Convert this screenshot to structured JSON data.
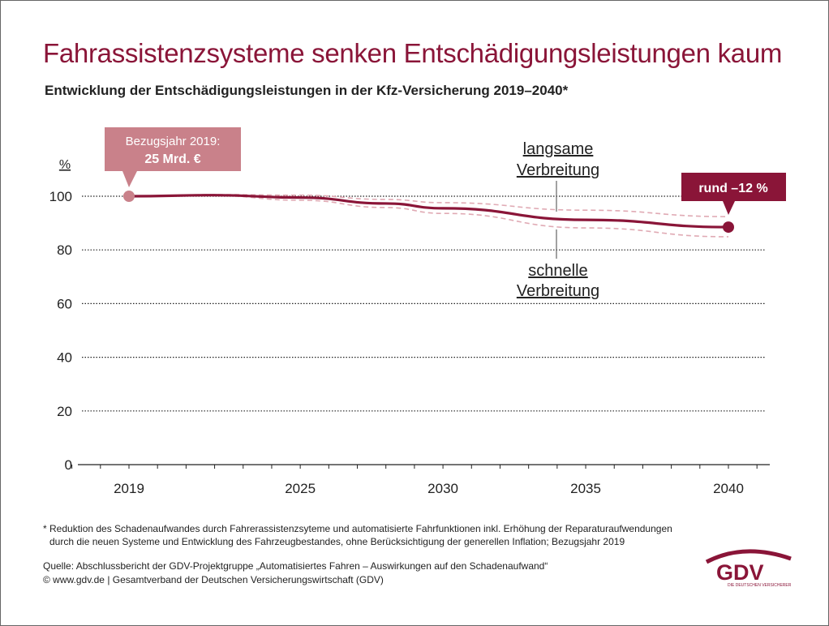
{
  "title": "Fahrassistenzsysteme senken Entschädigungsleistungen kaum",
  "subtitle": "Entwicklung der Entschädigungsleistungen in der Kfz-Versicherung 2019–2040*",
  "chart_data": {
    "type": "line",
    "ylabel": "%",
    "ylim": [
      0,
      100
    ],
    "yticks": [
      0,
      20,
      40,
      60,
      80,
      100
    ],
    "xticks": [
      2019,
      2025,
      2030,
      2035,
      2040
    ],
    "grid": "horizontal dotted",
    "series": [
      {
        "name": "main",
        "color": "#8a1538",
        "x": [
          2019,
          2022,
          2025,
          2028,
          2030,
          2035,
          2040
        ],
        "y": [
          100,
          100.4,
          99.5,
          97.3,
          95.5,
          91.2,
          88.5
        ]
      },
      {
        "name": "langsame Verbreitung",
        "color": "#e0aab4",
        "dashed": true,
        "x": [
          2019,
          2022,
          2025,
          2028,
          2030,
          2035,
          2040
        ],
        "y": [
          100,
          100.6,
          100.4,
          98.8,
          97.6,
          94.8,
          92.4
        ]
      },
      {
        "name": "schnelle Verbreitung",
        "color": "#e0aab4",
        "dashed": true,
        "x": [
          2019,
          2022,
          2025,
          2028,
          2030,
          2035,
          2040
        ],
        "y": [
          100,
          100.2,
          98.5,
          95.8,
          93.6,
          88.2,
          84.9
        ]
      }
    ],
    "annotations": {
      "start_line1": "Bezugsjahr 2019:",
      "start_line2": "25 Mrd. €",
      "end": "rund –12 %",
      "slow_line1": "langsame",
      "slow_line2": "Verbreitung",
      "fast_line1": "schnelle",
      "fast_line2": "Verbreitung"
    }
  },
  "colors": {
    "accent": "#8a1538",
    "start_box": "#c9818a"
  },
  "footnote_line1": "* Reduktion des Schadenaufwandes durch Fahrerassistenzsyteme und automatisierte Fahrfunktionen inkl.  Erhöhung der Reparaturaufwendungen",
  "footnote_line2": "durch die neuen Systeme und Entwicklung des Fahrzeugbestandes, ohne Berücksichtigung der generellen Inflation; Bezugsjahr 2019",
  "source": "Quelle: Abschlussbericht der GDV-Projektgruppe „Automatisiertes Fahren – Auswirkungen auf den Schadenaufwand“",
  "copyright": "© www.gdv.de | Gesamtverband der Deutschen Versicherungswirtschaft (GDV)",
  "logo": {
    "text": "GDV",
    "tagline": "DIE DEUTSCHEN VERSICHERER"
  }
}
